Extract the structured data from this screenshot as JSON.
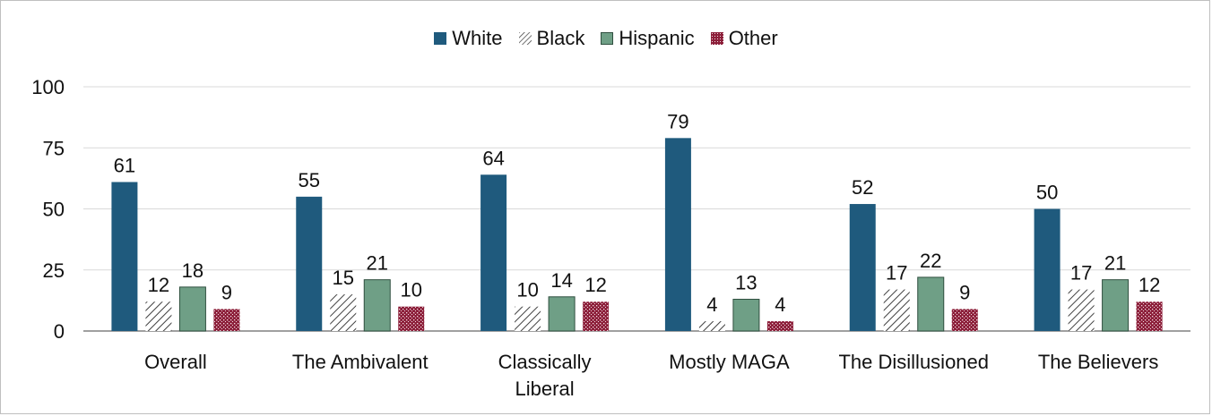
{
  "chart_data": {
    "type": "bar",
    "categories": [
      "Overall",
      "The Ambivalent",
      "Classically Liberal",
      "Mostly MAGA",
      "The Disillusioned",
      "The Believers"
    ],
    "series": [
      {
        "name": "White",
        "values": [
          61,
          55,
          64,
          79,
          52,
          50
        ]
      },
      {
        "name": "Black",
        "values": [
          12,
          15,
          10,
          4,
          17,
          17
        ]
      },
      {
        "name": "Hispanic",
        "values": [
          18,
          21,
          14,
          13,
          22,
          21
        ]
      },
      {
        "name": "Other",
        "values": [
          9,
          10,
          12,
          4,
          9,
          12
        ]
      }
    ],
    "ylim": [
      0,
      100
    ],
    "yticks": [
      0,
      25,
      50,
      75,
      100
    ],
    "grid": true,
    "legend_position": "top-center",
    "colors": {
      "White": "#1f5a7d",
      "Black": "#5a5a5a",
      "Hispanic": "#6f9f86",
      "Other": "#8c1f3a"
    }
  }
}
